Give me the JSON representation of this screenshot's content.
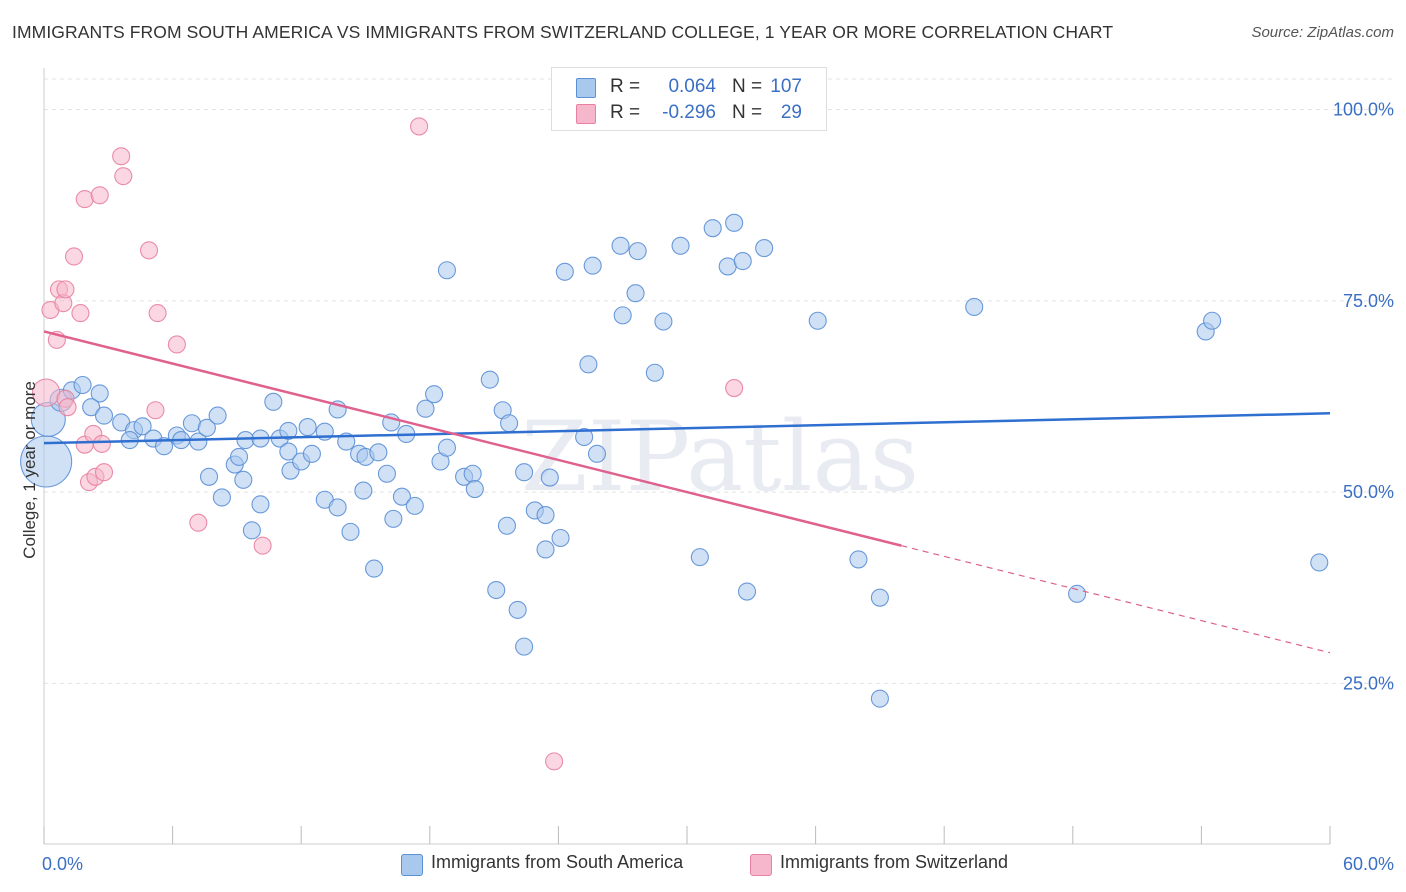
{
  "title": "IMMIGRANTS FROM SOUTH AMERICA VS IMMIGRANTS FROM SWITZERLAND COLLEGE, 1 YEAR OR MORE CORRELATION CHART",
  "source": "Source: ZipAtlas.com",
  "watermark": "ZIPatlas",
  "legend": {
    "rows": [
      {
        "r_label": "R =",
        "r_value": "0.064",
        "n_label": "N =",
        "n_value": "107"
      },
      {
        "r_label": "R =",
        "r_value": "-0.296",
        "n_label": "N =",
        "n_value": "29"
      }
    ]
  },
  "bottom_legend": {
    "south_america": "Immigrants from South America",
    "switzerland": "Immigrants from Switzerland"
  },
  "colors": {
    "blue_fill": "#a9c8ee",
    "blue_stroke": "#5b8fd6",
    "blue_line": "#2f6fd0",
    "pink_fill": "#f6b6cb",
    "pink_stroke": "#e8819f",
    "pink_line": "#e0608e",
    "tick_text": "#3a6fc4",
    "grid": "#e3e3e3"
  },
  "chart_data": {
    "type": "scatter",
    "title": "IMMIGRANTS FROM SOUTH AMERICA VS IMMIGRANTS FROM SWITZERLAND COLLEGE, 1 YEAR OR MORE CORRELATION CHART",
    "xlabel": "",
    "ylabel": "College, 1 year or more",
    "xlim": [
      0,
      60
    ],
    "ylim": [
      4,
      104
    ],
    "x_tick_labels": [
      "0.0%",
      "60.0%"
    ],
    "y_ticks": [
      25,
      50,
      75,
      100
    ],
    "y_tick_labels": [
      "25.0%",
      "50.0%",
      "75.0%",
      "100.0%"
    ],
    "grid": true,
    "legend_position": "top-center",
    "series": [
      {
        "name": "Immigrants from South America",
        "r": 0.064,
        "n": 107,
        "trend": {
          "x": [
            0,
            60
          ],
          "y": [
            56.4,
            60.3
          ],
          "dashed_after": null
        },
        "points": [
          [
            0.1,
            54.0,
            3
          ],
          [
            0.2,
            59.5,
            2
          ],
          [
            0.8,
            62.0,
            1.3
          ],
          [
            1.3,
            63.3,
            1
          ],
          [
            1.8,
            64.0,
            1
          ],
          [
            2.6,
            62.9,
            1
          ],
          [
            2.2,
            61.1,
            1
          ],
          [
            2.8,
            60.0,
            1
          ],
          [
            3.6,
            59.1,
            1
          ],
          [
            4.2,
            58.1,
            1
          ],
          [
            4.6,
            58.6,
            1
          ],
          [
            4.0,
            56.8,
            1
          ],
          [
            5.1,
            57.0,
            1
          ],
          [
            5.6,
            56.0,
            1
          ],
          [
            6.2,
            57.4,
            1
          ],
          [
            6.4,
            56.8,
            1
          ],
          [
            6.9,
            59.0,
            1
          ],
          [
            7.2,
            56.6,
            1
          ],
          [
            7.6,
            58.4,
            1
          ],
          [
            8.1,
            60.0,
            1
          ],
          [
            7.7,
            52.0,
            1
          ],
          [
            8.3,
            49.3,
            1
          ],
          [
            8.9,
            53.6,
            1
          ],
          [
            9.1,
            54.6,
            1
          ],
          [
            9.3,
            51.6,
            1
          ],
          [
            9.4,
            56.8,
            1
          ],
          [
            10.1,
            57.0,
            1
          ],
          [
            9.7,
            45.0,
            1
          ],
          [
            10.1,
            48.4,
            1
          ],
          [
            10.7,
            61.8,
            1
          ],
          [
            11.0,
            57.0,
            1
          ],
          [
            11.4,
            55.3,
            1
          ],
          [
            11.5,
            52.8,
            1
          ],
          [
            12.3,
            58.5,
            1
          ],
          [
            11.4,
            58.0,
            1
          ],
          [
            12.0,
            54.0,
            1
          ],
          [
            12.5,
            55.0,
            1
          ],
          [
            13.1,
            57.9,
            1
          ],
          [
            13.7,
            60.8,
            1
          ],
          [
            13.1,
            49.0,
            1
          ],
          [
            13.7,
            48.0,
            1
          ],
          [
            14.1,
            56.6,
            1
          ],
          [
            14.3,
            44.8,
            1
          ],
          [
            14.7,
            55.0,
            1
          ],
          [
            15.0,
            54.6,
            1
          ],
          [
            15.4,
            40.0,
            1
          ],
          [
            15.6,
            55.2,
            1
          ],
          [
            14.9,
            50.2,
            1
          ],
          [
            16.0,
            52.4,
            1
          ],
          [
            16.2,
            59.1,
            1
          ],
          [
            16.3,
            46.5,
            1
          ],
          [
            16.7,
            49.4,
            1
          ],
          [
            16.9,
            57.6,
            1
          ],
          [
            17.3,
            48.2,
            1
          ],
          [
            17.8,
            60.9,
            1
          ],
          [
            18.2,
            62.8,
            1
          ],
          [
            18.5,
            54.0,
            1
          ],
          [
            18.8,
            55.8,
            1
          ],
          [
            18.8,
            79.0,
            1
          ],
          [
            19.6,
            52.0,
            1
          ],
          [
            20.0,
            52.4,
            1
          ],
          [
            20.1,
            50.4,
            1
          ],
          [
            20.8,
            64.7,
            1
          ],
          [
            21.1,
            37.2,
            1
          ],
          [
            21.4,
            60.7,
            1
          ],
          [
            21.6,
            45.6,
            1
          ],
          [
            21.7,
            59.0,
            1
          ],
          [
            22.1,
            34.6,
            1
          ],
          [
            22.4,
            29.8,
            1
          ],
          [
            22.4,
            52.6,
            1
          ],
          [
            22.9,
            47.6,
            1
          ],
          [
            23.4,
            42.5,
            1
          ],
          [
            23.4,
            47.0,
            1
          ],
          [
            23.6,
            51.9,
            1
          ],
          [
            24.1,
            44.0,
            1
          ],
          [
            24.3,
            78.8,
            1
          ],
          [
            25.2,
            57.2,
            1
          ],
          [
            25.4,
            66.7,
            1
          ],
          [
            25.6,
            79.6,
            1
          ],
          [
            25.8,
            55.0,
            1
          ],
          [
            26.9,
            82.2,
            1
          ],
          [
            27.0,
            73.1,
            1
          ],
          [
            27.6,
            76.0,
            1
          ],
          [
            27.7,
            81.5,
            1
          ],
          [
            28.5,
            65.6,
            1
          ],
          [
            28.9,
            72.3,
            1
          ],
          [
            29.7,
            82.2,
            1
          ],
          [
            30.6,
            41.5,
            1
          ],
          [
            31.2,
            84.5,
            1
          ],
          [
            31.9,
            79.5,
            1
          ],
          [
            32.2,
            85.2,
            1
          ],
          [
            32.6,
            80.2,
            1
          ],
          [
            32.8,
            37.0,
            1
          ],
          [
            33.6,
            81.9,
            1
          ],
          [
            36.1,
            72.4,
            1
          ],
          [
            38.0,
            41.2,
            1
          ],
          [
            39.0,
            36.2,
            1
          ],
          [
            39.0,
            23.0,
            1
          ],
          [
            43.4,
            74.2,
            1
          ],
          [
            48.2,
            36.7,
            1
          ],
          [
            54.2,
            71.0,
            1
          ],
          [
            54.5,
            72.4,
            1
          ],
          [
            59.5,
            40.8,
            1
          ]
        ]
      },
      {
        "name": "Immigrants from Switzerland",
        "r": -0.296,
        "n": 29,
        "trend": {
          "x": [
            0,
            60
          ],
          "y": [
            71.0,
            29.0
          ],
          "dashed_after": 40
        },
        "points": [
          [
            0.1,
            63.0,
            1.6
          ],
          [
            0.3,
            73.8,
            1
          ],
          [
            0.6,
            69.9,
            1
          ],
          [
            0.7,
            76.5,
            1
          ],
          [
            0.9,
            74.7,
            1
          ],
          [
            1.0,
            62.2,
            1
          ],
          [
            1.0,
            76.5,
            1
          ],
          [
            1.1,
            61.1,
            1
          ],
          [
            1.4,
            80.8,
            1
          ],
          [
            1.7,
            73.4,
            1
          ],
          [
            1.9,
            56.2,
            1
          ],
          [
            1.9,
            88.3,
            1
          ],
          [
            2.1,
            51.3,
            1
          ],
          [
            2.3,
            57.6,
            1
          ],
          [
            2.4,
            52.0,
            1
          ],
          [
            2.6,
            88.8,
            1
          ],
          [
            2.7,
            56.3,
            1
          ],
          [
            2.8,
            52.6,
            1
          ],
          [
            3.6,
            93.9,
            1
          ],
          [
            3.7,
            91.3,
            1
          ],
          [
            4.9,
            81.6,
            1
          ],
          [
            5.2,
            60.7,
            1
          ],
          [
            5.3,
            73.4,
            1
          ],
          [
            6.2,
            69.3,
            1
          ],
          [
            7.2,
            46.0,
            1
          ],
          [
            10.2,
            43.0,
            1
          ],
          [
            17.5,
            97.8,
            1
          ],
          [
            23.8,
            14.8,
            1
          ],
          [
            32.2,
            63.6,
            1
          ]
        ]
      }
    ]
  }
}
